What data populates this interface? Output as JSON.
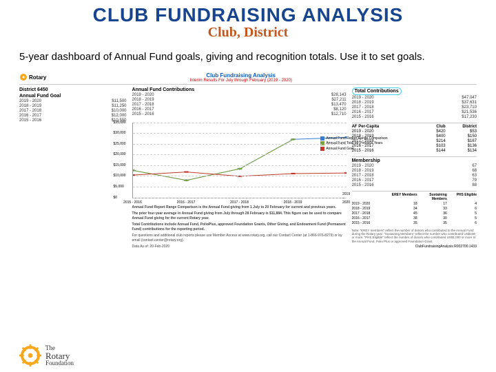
{
  "title": {
    "text": "CLUB FUNDRAISING ANALYSIS",
    "color": "#17458f"
  },
  "subtitle": {
    "text": "Club, District",
    "color": "#c4571e"
  },
  "description": "5-year dashboard of Annual Fund goals, giving and recognition totals. Use it to set goals.",
  "report": {
    "brand": "Rotary",
    "title": "Club Fundraising Analysis",
    "subtitle": "Interim Results For July through February (2019 - 2020)",
    "district": "District 6450",
    "annual_fund_goal": {
      "title": "Annual Fund Goal",
      "rows": [
        {
          "yr": "2019 - 2020",
          "val": "$11,500"
        },
        {
          "yr": "2018 - 2019",
          "val": "$11,250"
        },
        {
          "yr": "2017 - 2018",
          "val": "$10,000"
        },
        {
          "yr": "2016 - 2017",
          "val": "$12,000"
        },
        {
          "yr": "2015 - 2016",
          "val": "$10,550"
        }
      ]
    },
    "annual_fund_contrib": {
      "title": "Annual Fund Contributions",
      "rows": [
        {
          "yr": "2019 - 2020",
          "val": "$28,143"
        },
        {
          "yr": "2018 - 2019",
          "val": "$27,211"
        },
        {
          "yr": "2017 - 2018",
          "val": "$13,470"
        },
        {
          "yr": "2016 - 2017",
          "val": "$8,120"
        },
        {
          "yr": "2015 - 2016",
          "val": "$12,710"
        }
      ]
    },
    "total_contrib": {
      "title": "Total Contributions",
      "rows": [
        {
          "yr": "2019 - 2020",
          "val": "$47,047"
        },
        {
          "yr": "2018 - 2019",
          "val": "$37,631"
        },
        {
          "yr": "2017 - 2018",
          "val": "$23,710"
        },
        {
          "yr": "2016 - 2017",
          "val": "$21,536"
        },
        {
          "yr": "2015 - 2016",
          "val": "$17,230"
        }
      ]
    },
    "af_per_capita": {
      "title": "AF Per-Capita",
      "headers": [
        "",
        "Club",
        "District"
      ],
      "rows": [
        {
          "yr": "2019 - 2020",
          "c": "$420",
          "d": "$53"
        },
        {
          "yr": "2018 - 2019",
          "c": "$400",
          "d": "$150"
        },
        {
          "yr": "2017 - 2018",
          "c": "$214",
          "d": "$167"
        },
        {
          "yr": "2016 - 2017",
          "c": "$103",
          "d": "$136"
        },
        {
          "yr": "2015 - 2016",
          "c": "$144",
          "d": "$134"
        }
      ]
    },
    "membership": {
      "title": "Membership",
      "rows": [
        {
          "yr": "2019 - 2020",
          "v": "67"
        },
        {
          "yr": "2018 - 2019",
          "v": "68"
        },
        {
          "yr": "2017 - 2018",
          "v": "63"
        },
        {
          "yr": "2016 - 2017",
          "v": "79"
        },
        {
          "yr": "2015 - 2016",
          "v": "88"
        }
      ]
    },
    "member_detail": {
      "headers": [
        "",
        "EREY Members",
        "Sustaining Members",
        "PHS Eligible"
      ],
      "rows": [
        {
          "yr": "2019 - 2020",
          "a": "18",
          "b": "17",
          "c": "4"
        },
        {
          "yr": "2018 - 2019",
          "a": "34",
          "b": "33",
          "c": "6"
        },
        {
          "yr": "2017 - 2018",
          "a": "45",
          "b": "36",
          "c": "5"
        },
        {
          "yr": "2016 - 2017",
          "a": "38",
          "b": "30",
          "c": "5"
        },
        {
          "yr": "2015 - 2016",
          "a": "35",
          "b": "35",
          "c": "6"
        }
      ]
    },
    "chart": {
      "ylim": [
        0,
        35000
      ],
      "ytick_step": 5000,
      "categories": [
        "2015 - 2016",
        "2016 - 2017",
        "2017 - 2018",
        "2018 - 2019",
        "2019 - 2020"
      ],
      "series": [
        {
          "name": "Annual Fund Report Range Comparison",
          "color": "#3a7bd5",
          "marker": "diamond",
          "values": [
            12710,
            8120,
            13470,
            27211,
            28143
          ]
        },
        {
          "name": "Annual Fund Total for Previous Years",
          "color": "#7aa236",
          "marker": "square",
          "values": [
            12710,
            8120,
            13470,
            27211,
            null
          ]
        },
        {
          "name": "Annual Fund Goal",
          "color": "#c0392b",
          "marker": "square",
          "values": [
            10550,
            12000,
            10000,
            11250,
            11500
          ]
        }
      ],
      "legend_items": [
        {
          "label": "Annual Fund Report Range Comparison",
          "color": "#3a7bd5"
        },
        {
          "label": "Annual Fund Total for Previous Years",
          "color": "#7aa236"
        },
        {
          "label": "Annual Fund Goal",
          "color": "#c0392b"
        }
      ]
    },
    "footnotes": [
      "Annual Fund Report Range Comparison is the Annual Fund giving from 1 July to 20 February for current and previous years.",
      "The prior four-year average in Annual Fund giving from July through 28 February is $11,884. This figure can be used to compare Annual Fund giving for the current Rotary year.",
      "Total Contributions include Annual Fund, PolioPlus, approved Foundation Grants, Other Giving, and Endowment Fund (Permanent Fund) contributions for the reporting period.",
      "For questions and additional club reports please use Member Access at www.rotary.org, call our Contact Center (at 1-866-976-8279) or by email (contact.center@rotary.org).",
      "Data As of: 20-Feb-2020"
    ],
    "footnotes_right": "Note: \"EREY members\" reflect the number of donors who contributed to the Annual Fund during the Rotary year. \"Sustaining Members\" reflect the number who contributed US$100 or more. \"PHS Eligible\" reflect the number of donors who contributed US$1,000 or more to the Annual Fund, Polio Plus or approved Foundation Grant.",
    "report_id": "ClubFundraisingAnalysis R002700.1433"
  },
  "footer_brand": {
    "line1": "The",
    "line2": "Rotary",
    "line3": "Foundation"
  }
}
